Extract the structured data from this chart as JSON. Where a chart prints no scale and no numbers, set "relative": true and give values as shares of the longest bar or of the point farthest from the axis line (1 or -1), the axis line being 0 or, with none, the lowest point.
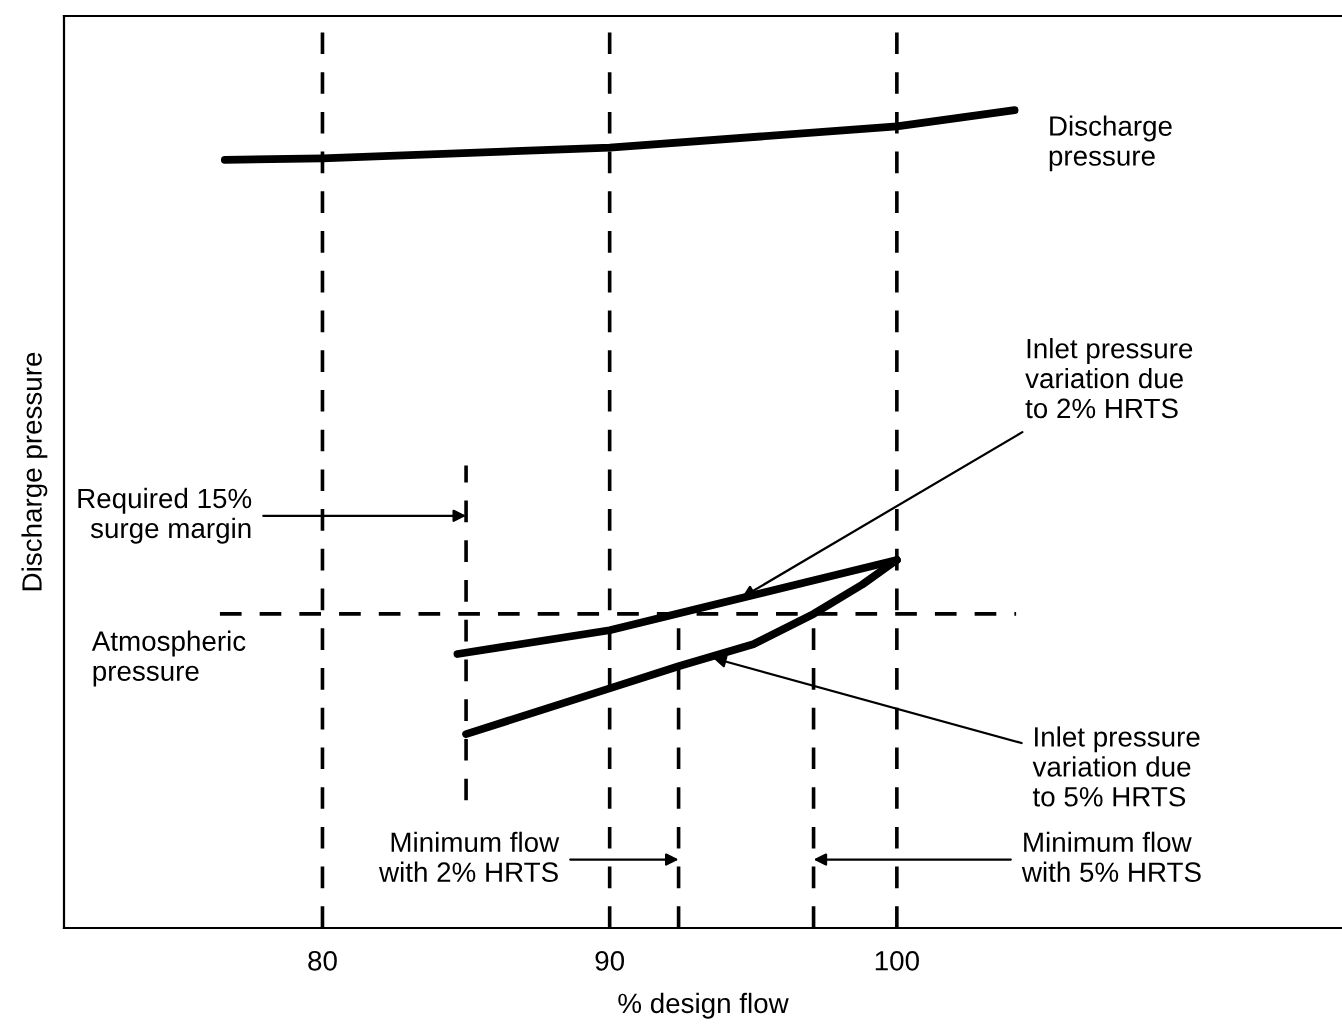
{
  "chart_data": {
    "type": "line",
    "xlabel": "% design flow",
    "ylabel": "Discharge pressure",
    "relative": true,
    "xlim": [
      71,
      115.5
    ],
    "xticks": [
      80,
      90,
      100
    ],
    "tick_labels": "x",
    "line_style": "solid",
    "marker": "none",
    "series": [
      {
        "name": "Discharge\npressure",
        "color": "#000000",
        "x": [
          76.6,
          80,
          90,
          100,
          104.1
        ],
        "values": [
          0.939,
          0.941,
          0.954,
          0.98,
          1.0
        ]
      },
      {
        "color": "#000000",
        "x": [
          84.7,
          90,
          100
        ],
        "values": [
          0.335,
          0.364,
          0.45
        ]
      },
      {
        "color": "#000000",
        "x": [
          85,
          90,
          92.4,
          95,
          97.1,
          98.8,
          100
        ],
        "values": [
          0.237,
          0.293,
          0.32,
          0.347,
          0.384,
          0.42,
          0.45
        ]
      }
    ],
    "ref_lines": [
      {
        "axis": "x",
        "value": 80,
        "label": null,
        "line_style": "dashed",
        "color": "#000000"
      },
      {
        "axis": "x",
        "value": 90,
        "label": null,
        "line_style": "dashed",
        "color": "#000000"
      },
      {
        "axis": "x",
        "value": 100,
        "label": null,
        "line_style": "dashed",
        "color": "#000000"
      },
      {
        "axis": "x",
        "value": 85,
        "label": "Required 15%\nsurge margin",
        "line_style": "dashed",
        "color": "#000000"
      },
      {
        "axis": "x",
        "value": 92.4,
        "label": "Minimum flow\nwith 2% HRTS",
        "line_style": "dashed",
        "color": "#000000"
      },
      {
        "axis": "x",
        "value": 97.1,
        "label": "Minimum flow\nwith 5% HRTS",
        "line_style": "dashed",
        "color": "#000000"
      },
      {
        "axis": "y",
        "value": 0.384,
        "label": "Atmospheric\npressure",
        "line_style": "dashed",
        "color": "#000000"
      }
    ],
    "annotations": [
      {
        "text": "Inlet pressure\nvariation due\nto 2% HRTS",
        "x": 94.6,
        "y": 0.404
      },
      {
        "text": "Inlet pressure\nvariation due\nto 5% HRTS",
        "x": 93.6,
        "y": 0.33
      }
    ]
  }
}
